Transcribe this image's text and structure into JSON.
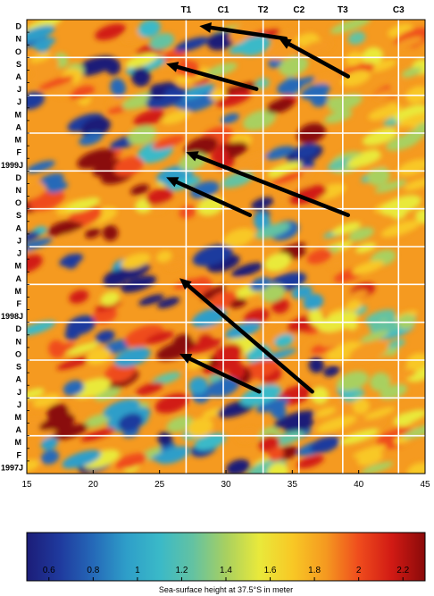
{
  "chart_data": {
    "type": "heatmap",
    "title": "",
    "x_ticks": [
      "15",
      "20",
      "25",
      "30",
      "35",
      "40",
      "45"
    ],
    "xlim": [
      15,
      45
    ],
    "sites": [
      {
        "label": "T1",
        "lon": 27.0
      },
      {
        "label": "C1",
        "lon": 29.8
      },
      {
        "label": "T2",
        "lon": 32.8
      },
      {
        "label": "C2",
        "lon": 35.5
      },
      {
        "label": "T3",
        "lon": 38.8
      },
      {
        "label": "C3",
        "lon": 43.0
      }
    ],
    "month_labels": [
      "1997J",
      "F",
      "M",
      "A",
      "M",
      "J",
      "J",
      "A",
      "S",
      "O",
      "N",
      "D",
      "1998J",
      "F",
      "M",
      "A",
      "M",
      "J",
      "J",
      "A",
      "S",
      "O",
      "N",
      "D",
      "1999J",
      "F",
      "M",
      "A",
      "M",
      "J",
      "J",
      "A",
      "S",
      "O",
      "N",
      "D"
    ],
    "time_range": [
      "1997-01",
      "1999-12"
    ],
    "colorbar": {
      "ticks": [
        "0.6",
        "0.8",
        "1",
        "1.2",
        "1.4",
        "1.6",
        "1.8",
        "2",
        "2.2"
      ],
      "range": [
        0.5,
        2.3
      ],
      "label": "Sea-surface height at 37.5°S in meter"
    },
    "colors": {
      "scale": [
        "#1c1d78",
        "#1f3a9e",
        "#2569b8",
        "#2e9ec9",
        "#3ab9c8",
        "#63c2a2",
        "#a8d060",
        "#e9e93b",
        "#f8c825",
        "#f59a20",
        "#ef4c1d",
        "#d11a14",
        "#8a0a0a"
      ]
    },
    "arrows": [
      {
        "from_lon": 39.2,
        "from_month": "1999-08",
        "to_lon": 34.0,
        "to_month": "1999-11"
      },
      {
        "from_lon": 34.5,
        "from_month": "1999-11",
        "to_lon": 28.0,
        "to_month": "1999-12"
      },
      {
        "from_lon": 32.3,
        "from_month": "1999-07",
        "to_lon": 25.5,
        "to_month": "1999-09"
      },
      {
        "from_lon": 39.2,
        "from_month": "1998-09",
        "to_lon": 27.0,
        "to_month": "1999-02"
      },
      {
        "from_lon": 31.8,
        "from_month": "1998-09",
        "to_lon": 25.5,
        "to_month": "1998-12"
      },
      {
        "from_lon": 36.5,
        "from_month": "1997-07",
        "to_lon": 26.5,
        "to_month": "1998-04"
      },
      {
        "from_lon": 32.5,
        "from_month": "1997-07",
        "to_lon": 26.5,
        "to_month": "1997-10"
      }
    ]
  }
}
